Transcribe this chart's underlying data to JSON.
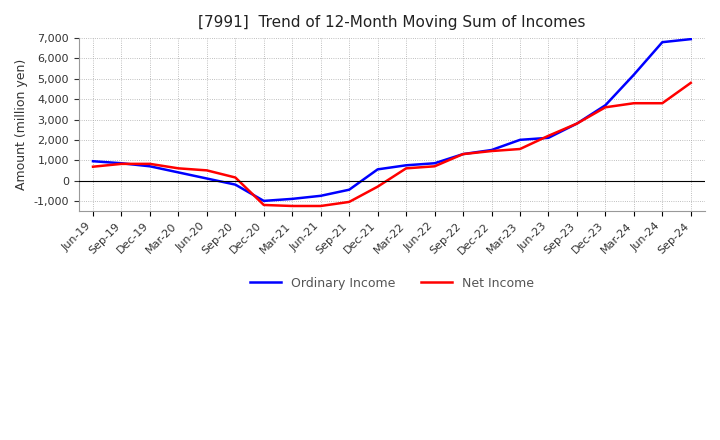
{
  "title": "[7991]  Trend of 12-Month Moving Sum of Incomes",
  "ylabel": "Amount (million yen)",
  "background_color": "#ffffff",
  "grid_color": "#aaaaaa",
  "x_labels": [
    "Jun-19",
    "Sep-19",
    "Dec-19",
    "Mar-20",
    "Jun-20",
    "Sep-20",
    "Dec-20",
    "Mar-21",
    "Jun-21",
    "Sep-21",
    "Dec-21",
    "Mar-22",
    "Jun-22",
    "Sep-22",
    "Dec-22",
    "Mar-23",
    "Jun-23",
    "Sep-23",
    "Dec-23",
    "Mar-24",
    "Jun-24",
    "Sep-24"
  ],
  "ordinary_income": [
    950,
    850,
    700,
    400,
    100,
    -200,
    -1000,
    -900,
    -750,
    -450,
    550,
    750,
    850,
    1300,
    1500,
    2000,
    2100,
    2800,
    3700,
    5200,
    6800,
    6950
  ],
  "net_income": [
    680,
    820,
    820,
    600,
    500,
    150,
    -1200,
    -1250,
    -1250,
    -1050,
    -300,
    600,
    700,
    1300,
    1450,
    1550,
    2200,
    2800,
    3600,
    3800,
    3800,
    4800
  ],
  "ordinary_color": "#0000ff",
  "net_color": "#ff0000",
  "ylim": [
    -1500,
    7000
  ],
  "yticks": [
    -1000,
    0,
    1000,
    2000,
    3000,
    4000,
    5000,
    6000,
    7000
  ],
  "line_width": 1.8,
  "title_fontsize": 11,
  "axis_fontsize": 9,
  "tick_fontsize": 8,
  "legend_fontsize": 9,
  "legend_text_color": "#555555",
  "axis_text_color": "#333333"
}
